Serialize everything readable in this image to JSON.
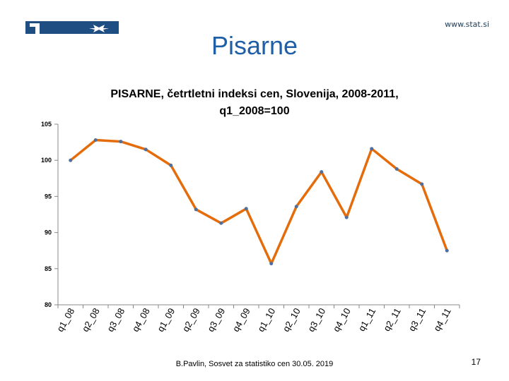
{
  "header": {
    "site": "www.stat.si",
    "slide_title": "Pisarne",
    "logo_icon": "statistical-office-logo"
  },
  "colors": {
    "series": "#e46c0a",
    "marker": "#4f6f9f",
    "title": "#1f5fa6"
  },
  "chart_data": {
    "type": "line",
    "title": "PISARNE, četrtletni indeksi cen, Slovenija, 2008-2011, q1_2008=100",
    "title_lines": [
      "PISARNE, četrtletni indeksi cen, Slovenija, 2008-2011,",
      "q1_2008=100"
    ],
    "xlabel": "",
    "ylabel": "",
    "categories": [
      "q1_08",
      "q2_08",
      "q3_08",
      "q4_08",
      "q1_09",
      "q2_09",
      "q3_09",
      "q4_09",
      "q1_10",
      "q2_10",
      "q3_10",
      "q4_10",
      "q1_11",
      "q2_11",
      "q3_11",
      "q4_11"
    ],
    "series": [
      {
        "values": [
          100.0,
          102.8,
          102.6,
          101.5,
          99.3,
          93.2,
          91.3,
          93.3,
          85.7,
          93.6,
          98.4,
          92.1,
          101.6,
          98.8,
          96.7,
          87.5
        ]
      }
    ],
    "ylim": [
      80,
      105
    ],
    "yticks": [
      80,
      85,
      90,
      95,
      100,
      105
    ],
    "grid": false,
    "legend": "none"
  },
  "footer": {
    "text": "B.Pavlin, Sosvet za statistiko cen 30.05. 2019",
    "page": "17"
  }
}
